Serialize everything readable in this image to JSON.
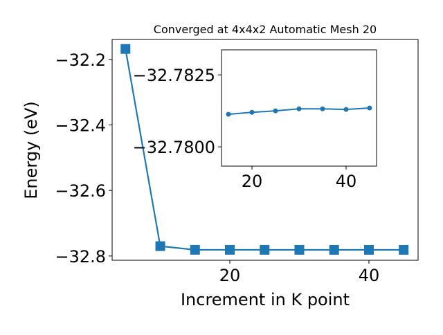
{
  "chart_data": [
    {
      "type": "line",
      "title": "Converged at 4x4x2 Automatic Mesh 20",
      "x_label": "Increment in K point",
      "y_label": "Energy (eV)",
      "x": [
        5,
        10,
        15,
        20,
        25,
        30,
        35,
        40,
        45
      ],
      "series": [
        {
          "color": "#1f77b4",
          "marker": "square",
          "values": [
            -32.168,
            -32.77,
            -32.78113,
            -32.7812,
            -32.78125,
            -32.78132,
            -32.78132,
            -32.7813,
            -32.78135
          ]
        }
      ],
      "xlim": [
        3.08,
        47.07
      ],
      "ylim": [
        -32.813,
        -32.139
      ],
      "xticks": [
        20,
        40
      ],
      "yticks": [
        {
          "value": -32.2,
          "label": "−32.2"
        },
        {
          "value": -32.4,
          "label": "−32.4"
        },
        {
          "value": -32.6,
          "label": "−32.6"
        },
        {
          "value": -32.8,
          "label": "−32.8"
        }
      ]
    },
    {
      "type": "line",
      "x": [
        15,
        20,
        25,
        30,
        35,
        40,
        45
      ],
      "series": [
        {
          "color": "#1f77b4",
          "marker": "circle",
          "values": [
            -32.78113,
            -32.7812,
            -32.78125,
            -32.78132,
            -32.78132,
            -32.7813,
            -32.78135
          ]
        }
      ],
      "xlim": [
        13.53,
        46.47
      ],
      "ylim": [
        -32.77933,
        -32.78337
      ],
      "xticks": [
        20,
        40
      ],
      "yticks": [
        {
          "value": -32.7825,
          "label": "−32.7825"
        },
        {
          "value": -32.78,
          "label": "−32.7800"
        }
      ]
    }
  ]
}
